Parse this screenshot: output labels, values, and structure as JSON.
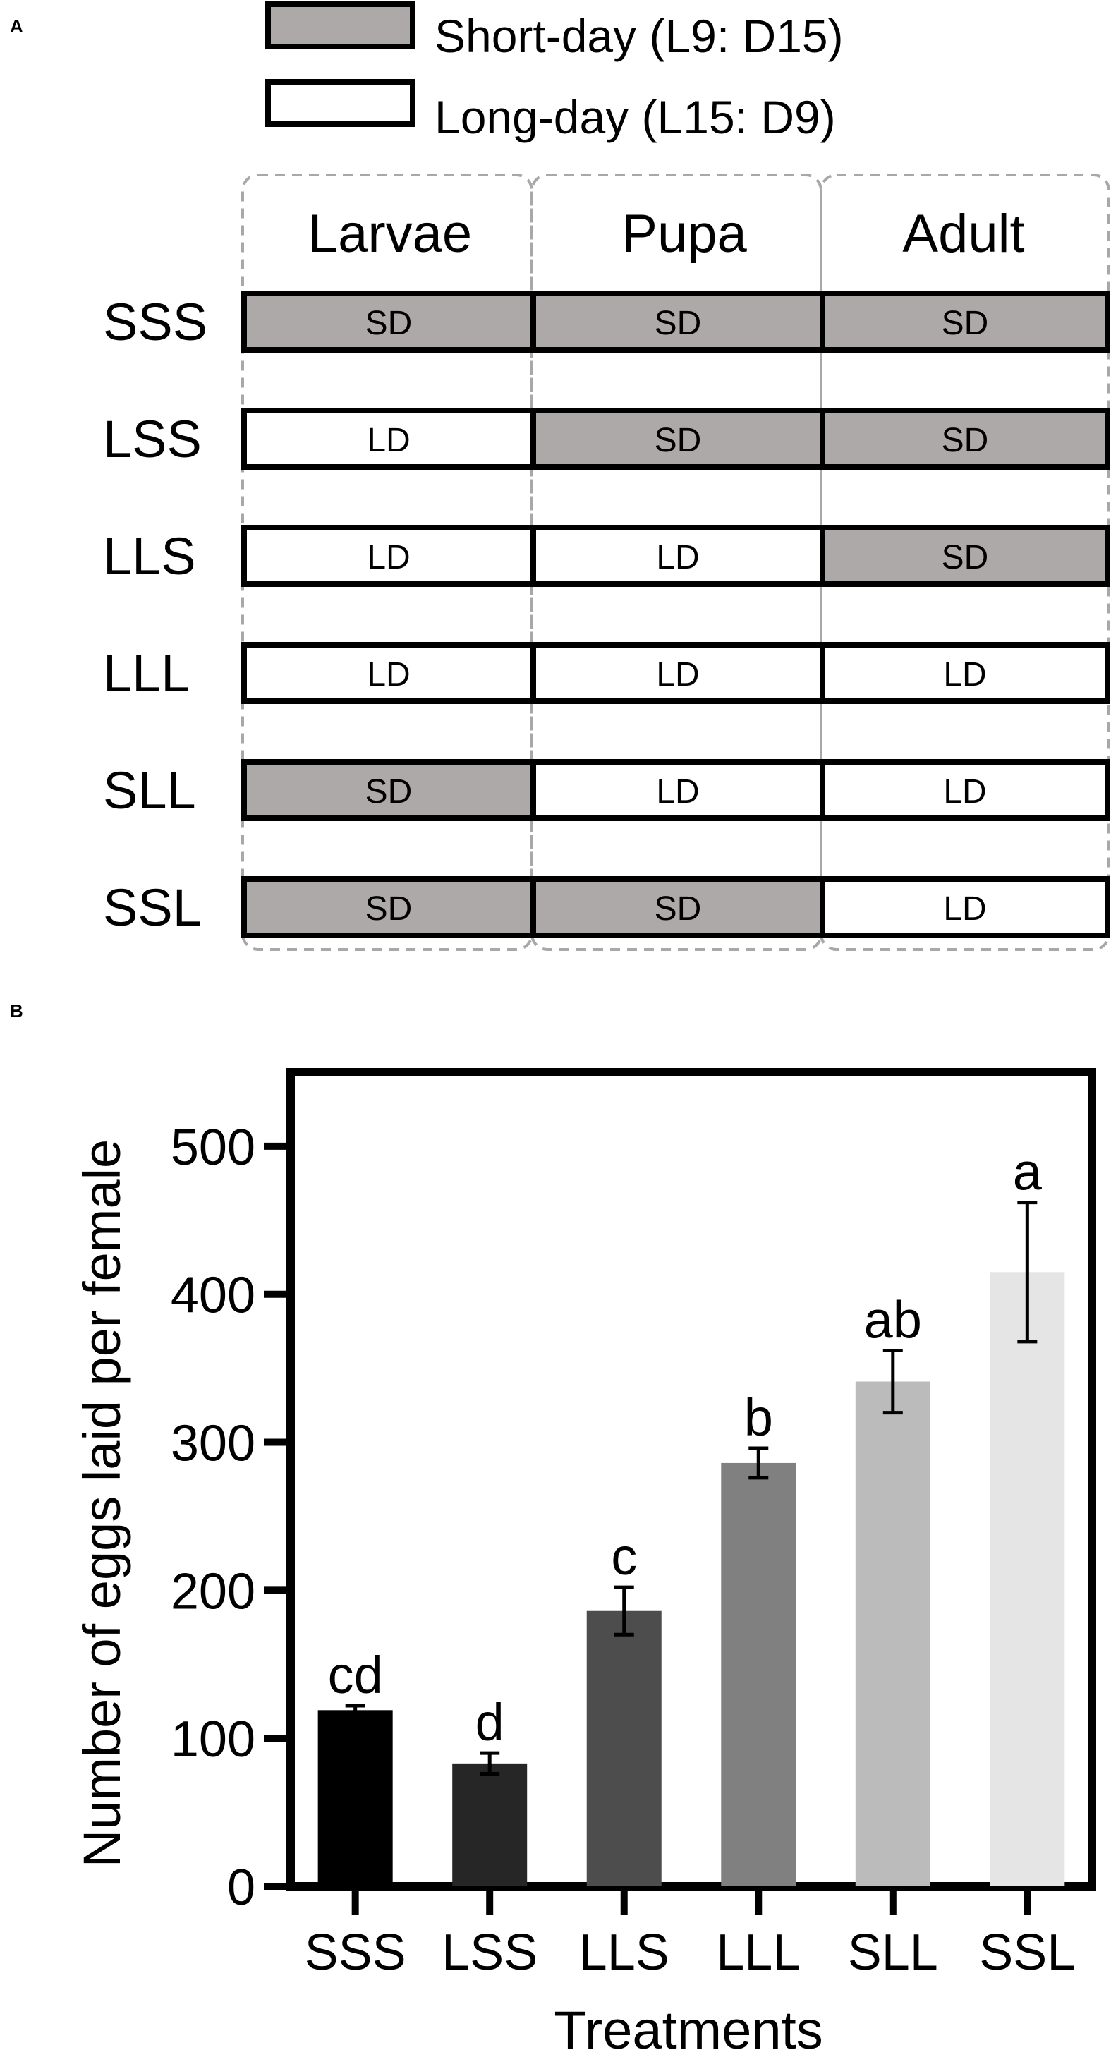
{
  "panels": {
    "a": "A",
    "b": "B"
  },
  "legend": {
    "short_day": "Short-day (L9: D15)",
    "long_day": "Long-day (L15: D9)",
    "short_color": "#ada9a8",
    "long_color": "#ffffff"
  },
  "schedule": {
    "stages": [
      "Larvae",
      "Pupa",
      "Adult"
    ],
    "rows": [
      {
        "label": "SSS",
        "cells": [
          "SD",
          "SD",
          "SD"
        ]
      },
      {
        "label": "LSS",
        "cells": [
          "LD",
          "SD",
          "SD"
        ]
      },
      {
        "label": "LLS",
        "cells": [
          "LD",
          "LD",
          "SD"
        ]
      },
      {
        "label": "LLL",
        "cells": [
          "LD",
          "LD",
          "LD"
        ]
      },
      {
        "label": "SLL",
        "cells": [
          "SD",
          "LD",
          "LD"
        ]
      },
      {
        "label": "SSL",
        "cells": [
          "SD",
          "SD",
          "LD"
        ]
      }
    ]
  },
  "chart_data": {
    "type": "bar",
    "title": "",
    "xlabel": "Treatments",
    "ylabel": "Number of eggs laid per female",
    "categories": [
      "SSS",
      "LSS",
      "LLS",
      "LLL",
      "SLL",
      "SSL"
    ],
    "values": [
      119,
      83,
      186,
      286,
      341,
      415
    ],
    "errors": [
      3,
      7,
      16,
      10,
      21,
      47
    ],
    "letters": [
      "cd",
      "d",
      "c",
      "b",
      "ab",
      "a"
    ],
    "colors": [
      "#000000",
      "#262626",
      "#4d4d4d",
      "#808080",
      "#bbbbbb",
      "#e5e5e5"
    ],
    "ylim": [
      0,
      550
    ],
    "yticks": [
      0,
      100,
      200,
      300,
      400,
      500
    ],
    "grid": false,
    "legend": "none"
  }
}
